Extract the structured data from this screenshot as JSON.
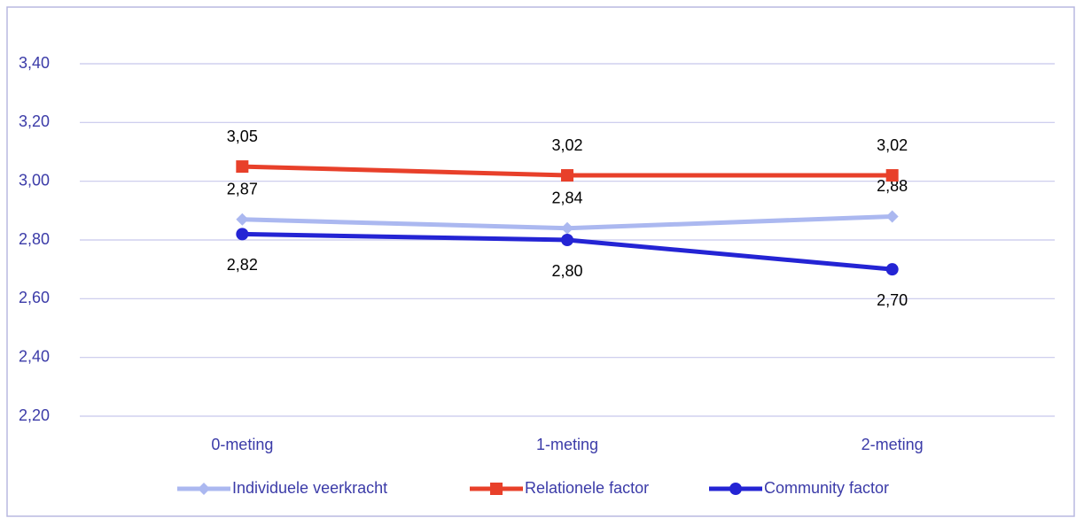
{
  "chart_data": {
    "type": "line",
    "categories": [
      "0-meting",
      "1-meting",
      "2-meting"
    ],
    "series": [
      {
        "name": "Individuele veerkracht",
        "color": "#abb8f0",
        "marker": "diamond",
        "values": [
          2.87,
          2.84,
          2.88
        ],
        "value_labels": [
          "2,87",
          "2,84",
          "2,88"
        ]
      },
      {
        "name": "Relationele factor",
        "color": "#e8402a",
        "marker": "square",
        "values": [
          3.05,
          3.02,
          3.02
        ],
        "value_labels": [
          "3,05",
          "3,02",
          "3,02"
        ]
      },
      {
        "name": "Community factor",
        "color": "#2424d4",
        "marker": "circle",
        "values": [
          2.82,
          2.8,
          2.7
        ],
        "value_labels": [
          "2,82",
          "2,80",
          "2,70"
        ]
      }
    ],
    "ylim": [
      2.2,
      3.4
    ],
    "yticks": [
      {
        "value": 2.2,
        "label": "2,20"
      },
      {
        "value": 2.4,
        "label": "2,40"
      },
      {
        "value": 2.6,
        "label": "2,60"
      },
      {
        "value": 2.8,
        "label": "2,80"
      },
      {
        "value": 3.0,
        "label": "3,00"
      },
      {
        "value": 3.2,
        "label": "3,20"
      },
      {
        "value": 3.4,
        "label": "3,40"
      }
    ],
    "grid": true,
    "legend": "bottom"
  }
}
